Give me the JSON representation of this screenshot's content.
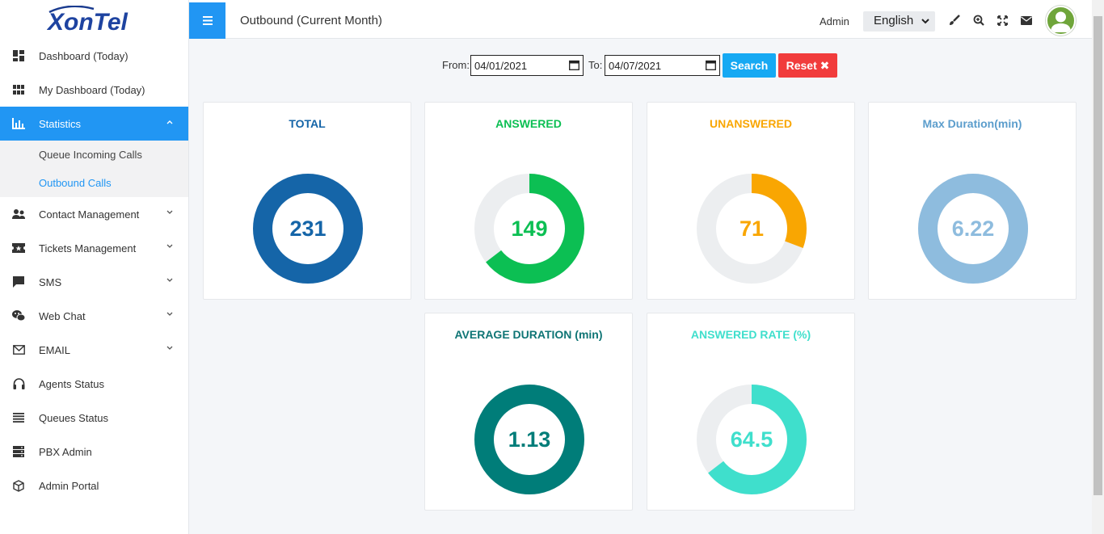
{
  "brand": {
    "logo_text": "XonTel"
  },
  "header": {
    "title": "Outbound (Current Month)",
    "user_label": "Admin",
    "language": "English"
  },
  "sidebar": {
    "items": [
      {
        "label": "Dashboard (Today)",
        "icon": "dashboard-icon"
      },
      {
        "label": "My Dashboard (Today)",
        "icon": "grid-icon"
      },
      {
        "label": "Statistics",
        "icon": "bar-chart-icon",
        "active": true,
        "expanded": true
      },
      {
        "label": "Contact Management",
        "icon": "users-icon",
        "has_submenu": true
      },
      {
        "label": "Tickets Management",
        "icon": "ticket-icon",
        "has_submenu": true
      },
      {
        "label": "SMS",
        "icon": "message-icon",
        "has_submenu": true
      },
      {
        "label": "Web Chat",
        "icon": "wechat-icon",
        "has_submenu": true
      },
      {
        "label": "EMAIL",
        "icon": "envelope-icon",
        "has_submenu": true
      },
      {
        "label": "Agents Status",
        "icon": "headset-icon"
      },
      {
        "label": "Queues Status",
        "icon": "list-icon"
      },
      {
        "label": "PBX Admin",
        "icon": "server-icon"
      },
      {
        "label": "Admin Portal",
        "icon": "cube-icon"
      }
    ],
    "statistics_submenu": [
      {
        "label": "Queue Incoming Calls"
      },
      {
        "label": "Outbound Calls",
        "current": true
      }
    ]
  },
  "filter": {
    "from_label": "From:",
    "from_value": "04/01/2021",
    "to_label": "To:",
    "to_value": "04/07/2021",
    "search_label": "Search",
    "reset_label": "Reset ✖"
  },
  "stats": [
    {
      "title": "TOTAL",
      "value": "231",
      "fraction": 1.0,
      "color": "#1565a8",
      "title_color": "#1565a8"
    },
    {
      "title": "ANSWERED",
      "value": "149",
      "fraction": 0.645,
      "color": "#0cbf53",
      "title_color": "#0cbf53"
    },
    {
      "title": "UNANSWERED",
      "value": "71",
      "fraction": 0.307,
      "color": "#f9a602",
      "title_color": "#f9a602"
    },
    {
      "title": "Max Duration(min)",
      "value": "6.22",
      "fraction": 1.0,
      "color": "#8ebcde",
      "title_color": "#5b9dcc"
    },
    {
      "title": "AVERAGE DURATION (min)",
      "value": "1.13",
      "fraction": 1.0,
      "color": "#007d79",
      "title_color": "#0f7575"
    },
    {
      "title": "ANSWERED RATE (%)",
      "value": "64.5",
      "fraction": 0.645,
      "color": "#3fdfcc",
      "title_color": "#3fdfcc"
    }
  ],
  "colors": {
    "accent": "#2196f3",
    "track": "#eceef0"
  }
}
